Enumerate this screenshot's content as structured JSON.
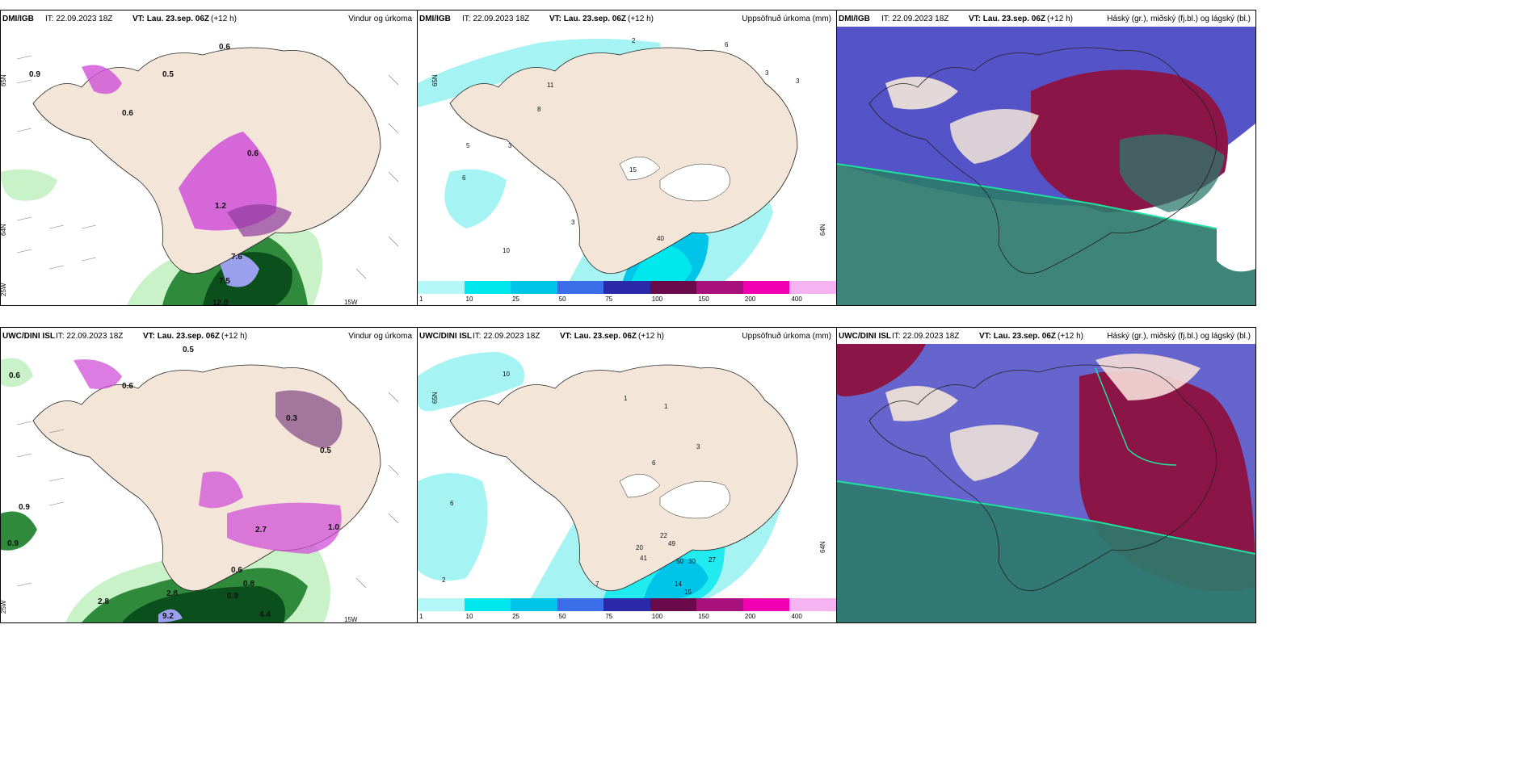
{
  "panels": [
    {
      "model": "DMI/IGB",
      "init": "IT: 22.09.2023 18Z",
      "valid": "VT: Lau. 23.sep. 06Z",
      "step": "(+12 h)",
      "title": "Vindur og úrkoma",
      "lat_labels": [
        "65N",
        "64N",
        "25W",
        "15W"
      ],
      "values": [
        "0.6",
        "0.9",
        "0.5",
        "0.6",
        "1.2",
        "7.6",
        "7.5",
        "12.0",
        "0.6"
      ]
    },
    {
      "model": "DMI/IGB",
      "init": "IT: 22.09.2023 18Z",
      "valid": "VT: Lau. 23.sep. 06Z",
      "step": "(+12 h)",
      "title": "Uppsöfnuð úrkoma (mm)",
      "lat_labels": [
        "65N",
        "64N"
      ],
      "values": [
        "2",
        "6",
        "3",
        "11",
        "8",
        "3",
        "5",
        "6",
        "15",
        "3",
        "10",
        "40",
        "3"
      ]
    },
    {
      "model": "DMI/IGB",
      "init": "IT: 22.09.2023 18Z",
      "valid": "VT: Lau. 23.sep. 06Z",
      "step": "(+12 h)",
      "title": "Háský (gr.), miðský (fj.bl.) og lágský (bl.)"
    },
    {
      "model": "UWC/DINI ISL",
      "init": "IT: 22.09.2023 18Z",
      "valid": "VT: Lau. 23.sep. 06Z",
      "step": "(+12 h)",
      "title": "Vindur og úrkoma",
      "lat_labels": [
        "25W",
        "15W"
      ],
      "values": [
        "0.5",
        "0.6",
        "0.6",
        "0.9",
        "0.9",
        "0.5",
        "0.3",
        "1.0",
        "2.7",
        "2.8",
        "0.6",
        "0.8",
        "0.9",
        "4.4",
        "9.2",
        "2.8"
      ]
    },
    {
      "model": "UWC/DINI ISL",
      "init": "IT: 22.09.2023 18Z",
      "valid": "VT: Lau. 23.sep. 06Z",
      "step": "(+12 h)",
      "title": "Uppsöfnuð úrkoma (mm)",
      "lat_labels": [
        "65N",
        "64N"
      ],
      "values": [
        "2",
        "10",
        "6",
        "1",
        "1",
        "3",
        "6",
        "20",
        "41",
        "50",
        "30",
        "27",
        "14",
        "15",
        "49",
        "22",
        "7"
      ]
    },
    {
      "model": "UWC/DINI ISL",
      "init": "IT: 22.09.2023 18Z",
      "valid": "VT: Lau. 23.sep. 06Z",
      "step": "(+12 h)",
      "title": "Háský (gr.), miðský (fj.bl.) og lágský (bl.)"
    }
  ],
  "colorbar": {
    "labels": [
      "1",
      "10",
      "25",
      "50",
      "75",
      "100",
      "150",
      "200",
      "400"
    ],
    "colors": [
      "#b3f7f9",
      "#00e8ee",
      "#00c5e8",
      "#3a6ee8",
      "#2a2aa8",
      "#6a0a4a",
      "#a8107c",
      "#f000b0",
      "#f5b3f2"
    ]
  },
  "colors": {
    "land": "#f3e6d8",
    "precip_light": "#c9f2c9",
    "precip_green": "#2f8a3c",
    "precip_dark": "#0b4f1c",
    "precip_purple": "#d050d8",
    "accum_cyan": "#a6f3f3",
    "cloud_high": "#2e7a6c",
    "cloud_mid": "#5553c8",
    "cloud_low": "#8c1548"
  }
}
